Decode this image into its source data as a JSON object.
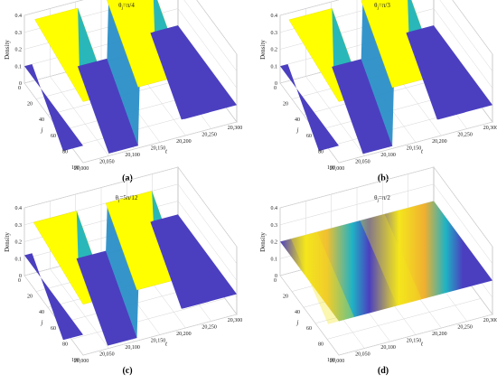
{
  "chart_data": [
    {
      "type": "surface",
      "panel_label": "(a)",
      "title": {
        "base": "θ",
        "sub": "j",
        "rest": "=π/4"
      },
      "zlabel": "Density",
      "xlabel": "j",
      "ylabel": "t",
      "zlim": [
        0,
        0.4
      ],
      "z_ticks": [
        "0",
        "0.1",
        "0.2",
        "0.3",
        "0.4"
      ],
      "x_ticks": [
        "0",
        "20",
        "40",
        "60",
        "80",
        "100"
      ],
      "y_ticks": [
        "20,000",
        "20,050",
        "20,100",
        "20,150",
        "20,200",
        "20,250",
        "20,300"
      ],
      "xlim": [
        0,
        100
      ],
      "ylim": [
        20000,
        20300
      ],
      "low_density": 0.1,
      "high_density": 0.36,
      "phase": 0.35
    },
    {
      "type": "surface",
      "panel_label": "(b)",
      "title": {
        "base": "θ",
        "sub": "j",
        "rest": "=π/3"
      },
      "zlabel": "Density",
      "xlabel": "j",
      "ylabel": "t",
      "zlim": [
        0,
        0.4
      ],
      "z_ticks": [
        "0",
        "0.1",
        "0.2",
        "0.3",
        "0.4"
      ],
      "x_ticks": [
        "0",
        "20",
        "40",
        "60",
        "80",
        "100"
      ],
      "y_ticks": [
        "20,000",
        "20,050",
        "20,100",
        "20,150",
        "20,200",
        "20,250",
        "20,300"
      ],
      "xlim": [
        0,
        100
      ],
      "ylim": [
        20000,
        20300
      ],
      "low_density": 0.1,
      "high_density": 0.36,
      "phase": 0.15
    },
    {
      "type": "surface",
      "panel_label": "(c)",
      "title": {
        "base": "θ",
        "sub": "j",
        "rest": "=5π/12"
      },
      "zlabel": "Density",
      "xlabel": "j",
      "ylabel": "t",
      "zlim": [
        0,
        0.4
      ],
      "z_ticks": [
        "0",
        "0.1",
        "0.2",
        "0.3",
        "0.4"
      ],
      "x_ticks": [
        "0",
        "20",
        "40",
        "60",
        "80",
        "100"
      ],
      "y_ticks": [
        "20,000",
        "20,050",
        "20,100",
        "20,150",
        "20,200",
        "20,250",
        "20,300"
      ],
      "xlim": [
        0,
        100
      ],
      "ylim": [
        20000,
        20300
      ],
      "low_density": 0.12,
      "high_density": 0.3,
      "phase": 0.2
    },
    {
      "type": "surface",
      "panel_label": "(d)",
      "title": {
        "base": "θ",
        "sub": "j",
        "rest": "=π/2"
      },
      "zlabel": "Density",
      "xlabel": "j",
      "ylabel": "t",
      "zlim": [
        0,
        0.4
      ],
      "z_ticks": [
        "0",
        "0.1",
        "0.2",
        "0.3",
        "0.4"
      ],
      "x_ticks": [
        "0",
        "20",
        "40",
        "60",
        "80",
        "100"
      ],
      "y_ticks": [
        "20,000",
        "20,050",
        "20,100",
        "20,150",
        "20,200",
        "20,250",
        "20,300"
      ],
      "xlim": [
        0,
        100
      ],
      "ylim": [
        20000,
        20300
      ],
      "low_density": 0.2,
      "high_density": 0.2,
      "phase": 0.1
    }
  ],
  "colors": {
    "low": "#4b3fc0",
    "mid": "#1fb3c4",
    "high": "#f4e61c",
    "peak": "#ffff00"
  }
}
